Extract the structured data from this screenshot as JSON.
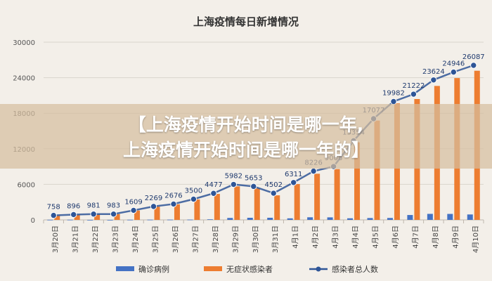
{
  "chart_data": {
    "type": "bar+line",
    "title": "上海疫情每日新增情况",
    "categories": [
      "3月20日",
      "3月21日",
      "3月22日",
      "3月23日",
      "3月24日",
      "3月25日",
      "3月26日",
      "3月27日",
      "3月28日",
      "3月29日",
      "3月30日",
      "3月31日",
      "4月1日",
      "4月2日",
      "4月3日",
      "4月4日",
      "4月5日",
      "4月6日",
      "4月7日",
      "4月8日",
      "4月9日",
      "4月10日"
    ],
    "ylim": [
      0,
      30000
    ],
    "yticks": [
      0,
      6000,
      12000,
      18000,
      24000,
      30000
    ],
    "series": [
      {
        "name": "确诊病例",
        "kind": "bar",
        "color": "#4472c4",
        "values": [
          24,
          31,
          4,
          4,
          29,
          38,
          45,
          50,
          96,
          326,
          355,
          358,
          260,
          438,
          425,
          268,
          311,
          322,
          824,
          1015,
          1006,
          914
        ]
      },
      {
        "name": "无症状感染者",
        "kind": "bar",
        "color": "#ed7d31",
        "values": [
          734,
          865,
          977,
          979,
          1580,
          2231,
          2631,
          3450,
          4381,
          5656,
          5298,
          4144,
          6051,
          7788,
          8581,
          13086,
          16766,
          19660,
          20398,
          22609,
          23937,
          25173
        ]
      },
      {
        "name": "感染者总人数",
        "kind": "line",
        "color": "#2e5597",
        "values": [
          758,
          896,
          981,
          983,
          1609,
          2269,
          2676,
          3500,
          4477,
          5982,
          5653,
          4502,
          6311,
          8226,
          9006,
          13354,
          17077,
          19982,
          21222,
          23624,
          24946,
          26087
        ]
      }
    ],
    "banner": "【上海疫情开始时间是哪一年,上海疫情开始时间是哪一年的】"
  }
}
